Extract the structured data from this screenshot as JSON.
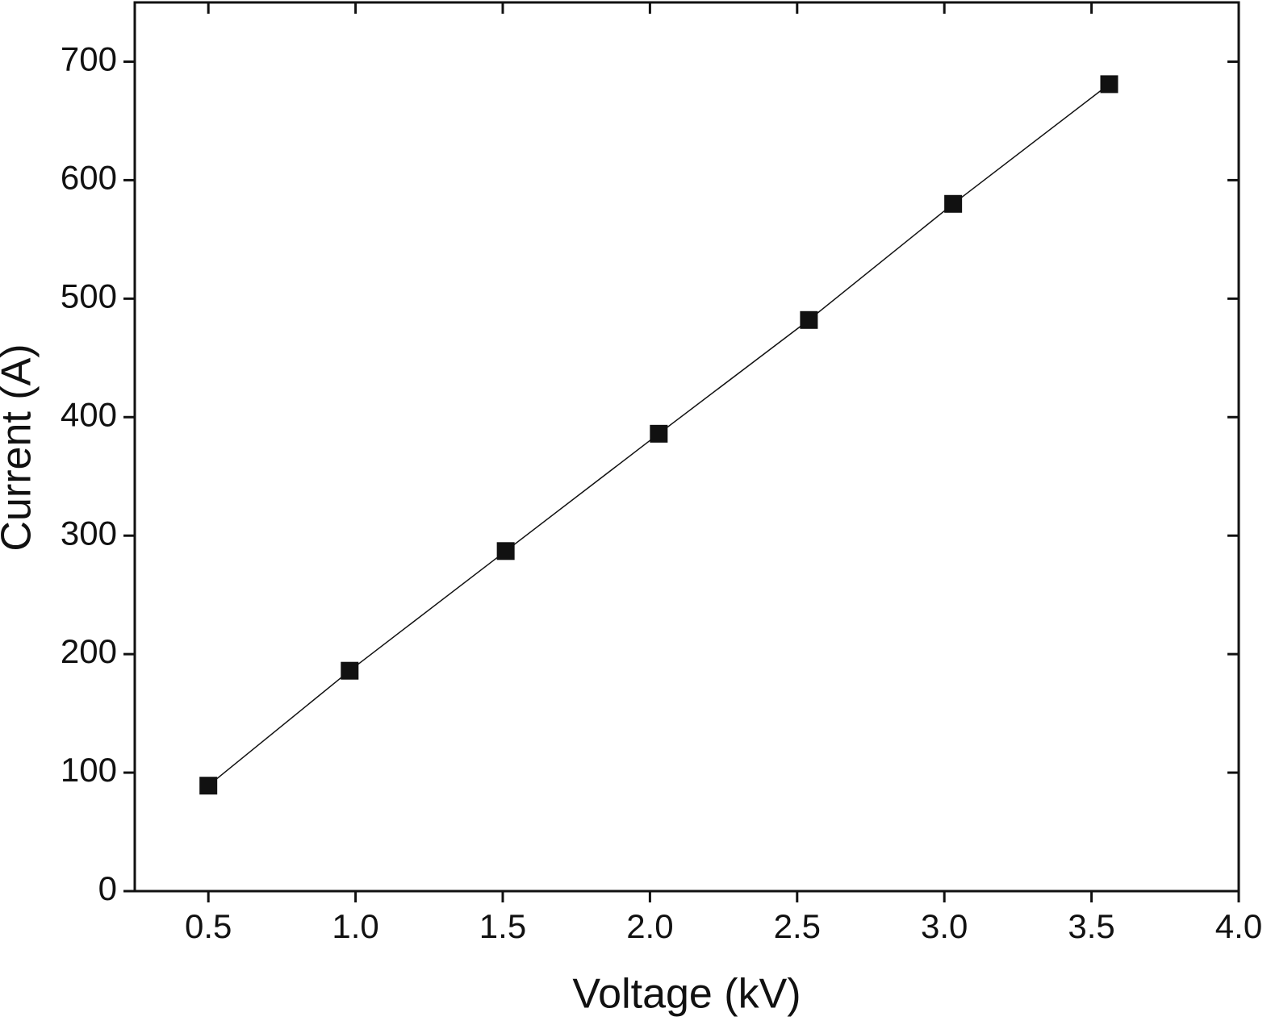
{
  "chart_data": {
    "type": "line",
    "x_label": "Voltage (kV)",
    "y_label": "Current (A)",
    "x": [
      0.5,
      0.98,
      1.51,
      2.03,
      2.54,
      3.03,
      3.56
    ],
    "series": [
      {
        "color": "#111111",
        "values": [
          89,
          186,
          287,
          386,
          482,
          580,
          681
        ]
      }
    ],
    "xlim": [
      0.25,
      4.0
    ],
    "xticks": [
      {
        "value": 0.5,
        "label": "0.5"
      },
      {
        "value": 1.0,
        "label": "1.0"
      },
      1.5,
      {
        "value": 2.0,
        "label": "2.0"
      },
      2.5,
      {
        "value": 3.0,
        "label": "3.0"
      },
      3.5,
      {
        "value": 4.0,
        "label": "4.0"
      }
    ],
    "ylim": [
      0,
      750
    ],
    "yticks": [
      0,
      100,
      200,
      300,
      400,
      500,
      600,
      700
    ],
    "grid": false
  }
}
